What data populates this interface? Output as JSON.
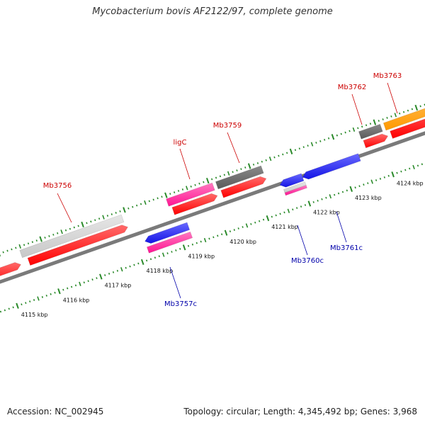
{
  "title": "Mycobacterium bovis AF2122/97, complete genome",
  "footer": {
    "accession": "Accession: NC_002945",
    "stats": "Topology: circular; Length: 4,345,492 bp; Genes: 3,968"
  },
  "colors": {
    "plus_label": "#cc0000",
    "minus_label": "#0000aa",
    "backbone": "#7a7a7a",
    "ticks": "#2a8a2a",
    "cds_red": "#ff0000",
    "pink": "#ff1493",
    "blue": "#1414e6",
    "light_gray": "#c8c8c8",
    "dark_gray": "#5a5a5a",
    "orange": "#ff9900"
  },
  "scale": {
    "unit": "kbp",
    "tick_labels": [
      "4115 kbp",
      "4116 kbp",
      "4117 kbp",
      "4118 kbp",
      "4119 kbp",
      "4120 kbp",
      "4121 kbp",
      "4122 kbp",
      "4123 kbp",
      "4124 kbp"
    ]
  },
  "features": [
    {
      "label": "Mb3756",
      "strand": "+"
    },
    {
      "label": "ligC",
      "strand": "+"
    },
    {
      "label": "Mb3759",
      "strand": "+"
    },
    {
      "label": "Mb3762",
      "strand": "+"
    },
    {
      "label": "Mb3763",
      "strand": "+"
    },
    {
      "label": "Mb3757c",
      "strand": "-"
    },
    {
      "label": "Mb3760c",
      "strand": "-"
    },
    {
      "label": "Mb3761c",
      "strand": "-"
    }
  ]
}
